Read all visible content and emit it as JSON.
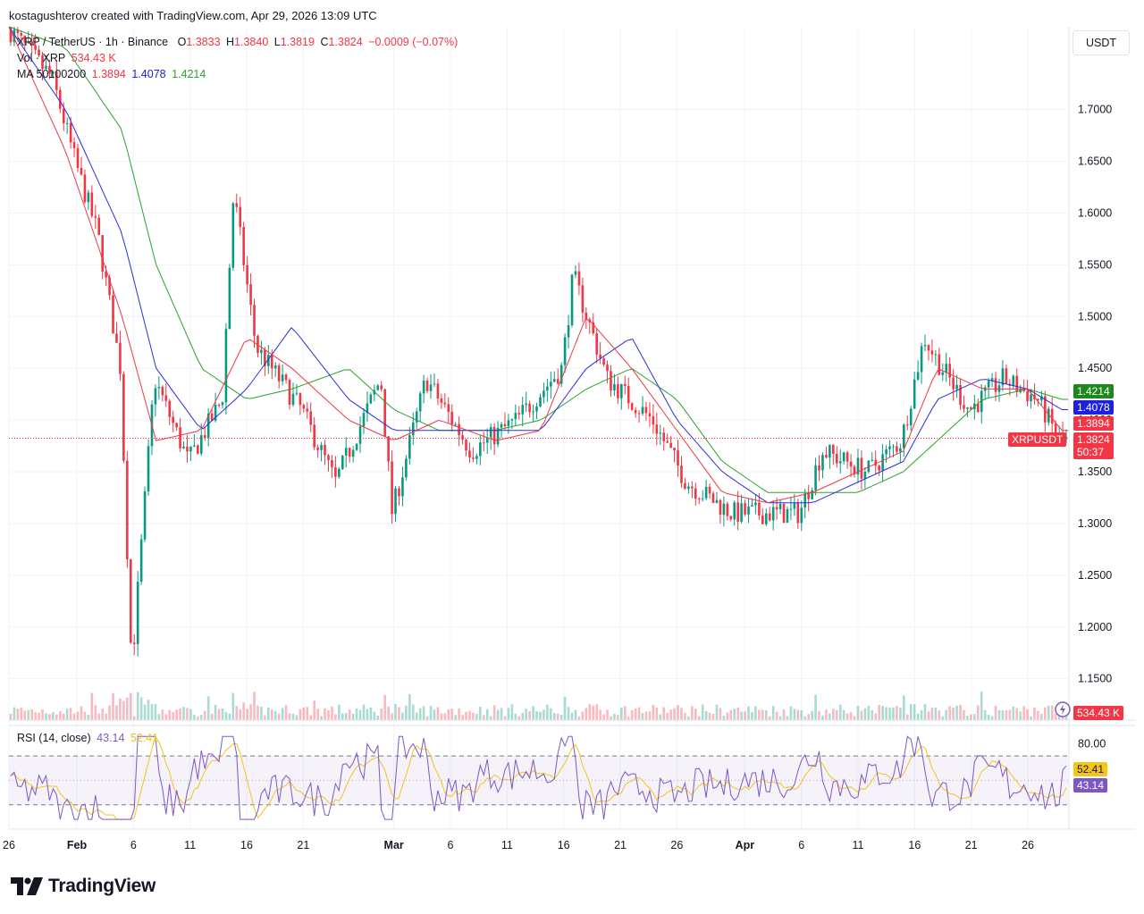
{
  "header": {
    "attribution": "kostagushterov created with TradingView.com, Apr 29, 2026 13:09 UTC"
  },
  "legend": {
    "symbol": "XRP / TetherUS · 1h · Binance",
    "o_label": "O",
    "o_value": "1.3833",
    "h_label": "H",
    "h_value": "1.3840",
    "l_label": "L",
    "l_value": "1.3819",
    "c_label": "C",
    "c_value": "1.3824",
    "change": "−0.0009 (−0.07%)",
    "vol_label": "Vol · XRP",
    "vol_value": "534.43 K",
    "ma_label": "MA 50100200",
    "ma50": "1.3894",
    "ma100": "1.4078",
    "ma200": "1.4214"
  },
  "rsi_legend": {
    "label": "RSI (14, close)",
    "rsi": "43.14",
    "rsi_ma": "52.41"
  },
  "currency": "USDT",
  "price_tags": {
    "ma200": "1.4214",
    "ma100": "1.4078",
    "ma50": "1.3894",
    "symbol": "XRPUSDT",
    "last": "1.3824",
    "countdown": "50:37",
    "volume": "534.43 K",
    "rsi_ma": "52.41",
    "rsi": "43.14"
  },
  "footer": {
    "brand": "TradingView"
  },
  "colors": {
    "up": "#089981",
    "down": "#f23645",
    "ma50": "#f23645",
    "ma100": "#2a2ee0",
    "ma200": "#2ca02c",
    "rsi": "#7e57c2",
    "rsi_ma": "#f5c518"
  },
  "chart_data": {
    "type": "line",
    "price_axis": {
      "ticks": [
        "1.7000",
        "1.6500",
        "1.6000",
        "1.5500",
        "1.5000",
        "1.4500",
        "1.4000",
        "1.3500",
        "1.3000",
        "1.2500",
        "1.2000",
        "1.1500"
      ],
      "range": [
        1.11,
        1.78
      ]
    },
    "time_axis": {
      "ticks": [
        "26",
        "Feb",
        "6",
        "11",
        "16",
        "21",
        "Mar",
        "6",
        "11",
        "16",
        "21",
        "26",
        "Apr",
        "6",
        "11",
        "16",
        "21",
        "26"
      ]
    },
    "rsi_axis": {
      "ticks": [
        "80.00"
      ],
      "bands": [
        70,
        30
      ]
    },
    "series": [
      {
        "name": "MA 50",
        "x": [
          "Jan 26",
          "Jan 31",
          "Feb 5",
          "Feb 8",
          "Feb 12",
          "Feb 16",
          "Feb 20",
          "Feb 25",
          "Mar 1",
          "Mar 5",
          "Mar 10",
          "Mar 14",
          "Mar 18",
          "Mar 22",
          "Mar 26",
          "Mar 30",
          "Apr 3",
          "Apr 7",
          "Apr 11",
          "Apr 15",
          "Apr 18",
          "Apr 22",
          "Apr 26",
          "Apr 29"
        ],
        "values": [
          1.78,
          1.66,
          1.5,
          1.38,
          1.39,
          1.48,
          1.45,
          1.4,
          1.38,
          1.4,
          1.38,
          1.39,
          1.5,
          1.45,
          1.39,
          1.33,
          1.32,
          1.33,
          1.35,
          1.37,
          1.45,
          1.43,
          1.43,
          1.39
        ]
      },
      {
        "name": "MA 100",
        "x": [
          "Jan 26",
          "Jan 31",
          "Feb 5",
          "Feb 8",
          "Feb 12",
          "Feb 16",
          "Feb 20",
          "Feb 25",
          "Mar 1",
          "Mar 5",
          "Mar 10",
          "Mar 14",
          "Mar 18",
          "Mar 22",
          "Mar 26",
          "Mar 30",
          "Apr 3",
          "Apr 7",
          "Apr 11",
          "Apr 15",
          "Apr 18",
          "Apr 22",
          "Apr 26",
          "Apr 29"
        ],
        "values": [
          1.78,
          1.7,
          1.58,
          1.45,
          1.39,
          1.43,
          1.49,
          1.42,
          1.39,
          1.39,
          1.39,
          1.39,
          1.45,
          1.48,
          1.4,
          1.35,
          1.32,
          1.32,
          1.34,
          1.36,
          1.42,
          1.44,
          1.43,
          1.41
        ]
      },
      {
        "name": "MA 200",
        "x": [
          "Jan 26",
          "Jan 31",
          "Feb 5",
          "Feb 8",
          "Feb 12",
          "Feb 16",
          "Feb 20",
          "Feb 25",
          "Mar 1",
          "Mar 5",
          "Mar 10",
          "Mar 14",
          "Mar 18",
          "Mar 22",
          "Mar 26",
          "Mar 30",
          "Apr 3",
          "Apr 7",
          "Apr 11",
          "Apr 15",
          "Apr 18",
          "Apr 22",
          "Apr 26",
          "Apr 29"
        ],
        "values": [
          1.78,
          1.76,
          1.68,
          1.55,
          1.45,
          1.42,
          1.43,
          1.45,
          1.41,
          1.39,
          1.39,
          1.4,
          1.43,
          1.45,
          1.42,
          1.36,
          1.33,
          1.33,
          1.33,
          1.35,
          1.38,
          1.42,
          1.43,
          1.42
        ]
      },
      {
        "name": "Price",
        "x": [
          "Jan 26",
          "Jan 30",
          "Feb 1",
          "Feb 3",
          "Feb 5",
          "Feb 6",
          "Feb 8",
          "Feb 11",
          "Feb 14",
          "Feb 15",
          "Feb 17",
          "Feb 21",
          "Feb 24",
          "Feb 28",
          "Mar 1",
          "Mar 4",
          "Mar 8",
          "Mar 12",
          "Mar 16",
          "Mar 17",
          "Mar 20",
          "Mar 24",
          "Mar 27",
          "Mar 31",
          "Apr 3",
          "Apr 6",
          "Apr 8",
          "Apr 12",
          "Apr 15",
          "Apr 17",
          "Apr 18",
          "Apr 21",
          "Apr 24",
          "Apr 27",
          "Apr 29"
        ],
        "values": [
          1.78,
          1.73,
          1.65,
          1.58,
          1.45,
          1.16,
          1.44,
          1.36,
          1.42,
          1.62,
          1.47,
          1.41,
          1.34,
          1.44,
          1.31,
          1.44,
          1.37,
          1.4,
          1.45,
          1.54,
          1.44,
          1.4,
          1.34,
          1.31,
          1.31,
          1.31,
          1.37,
          1.35,
          1.38,
          1.48,
          1.46,
          1.41,
          1.44,
          1.42,
          1.38
        ]
      }
    ]
  }
}
